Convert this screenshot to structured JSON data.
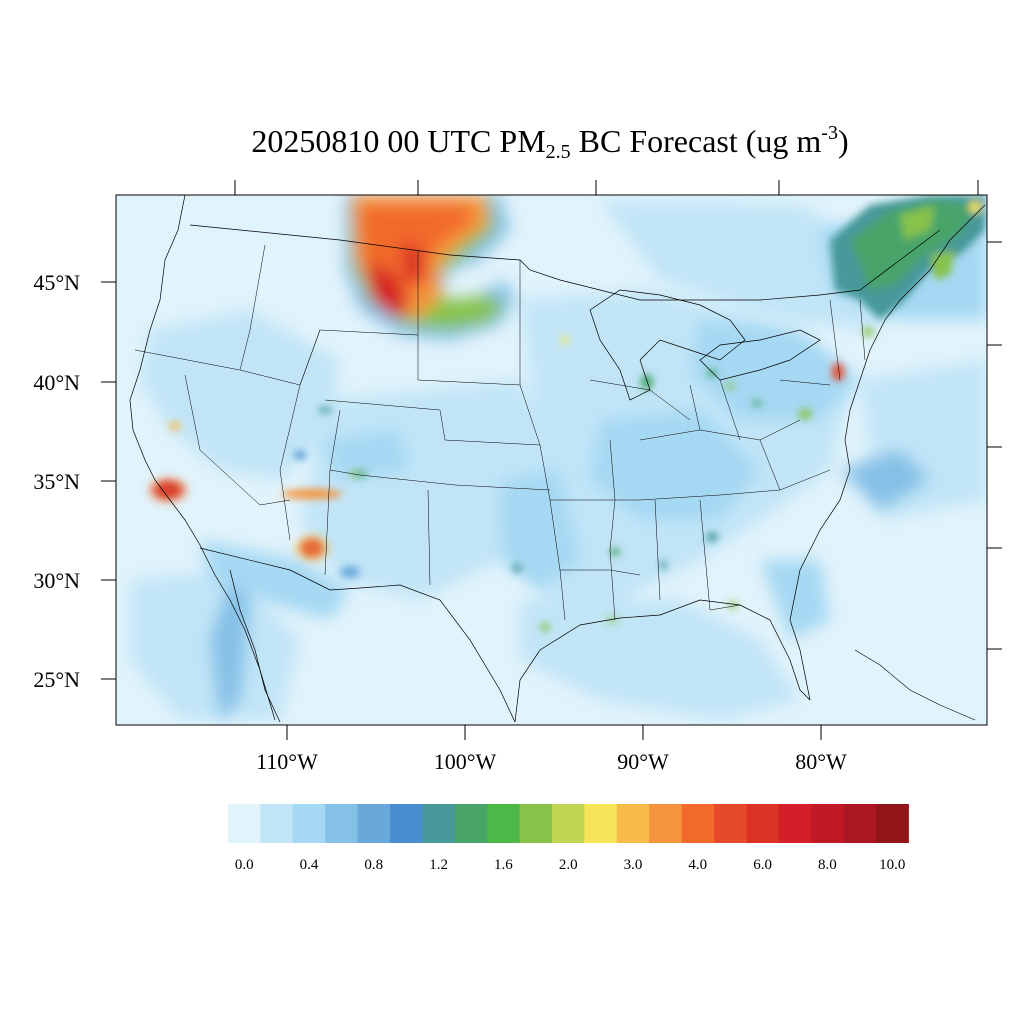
{
  "title": {
    "prefix": "20250810 00 UTC PM",
    "subscript": "2.5",
    "middle": " BC Forecast (ug m",
    "superscript": "-3",
    "suffix": ")"
  },
  "lat_labels": [
    "45°N",
    "40°N",
    "35°N",
    "30°N",
    "25°N"
  ],
  "lon_labels": [
    "110°W",
    "100°W",
    "90°W",
    "80°W"
  ],
  "colorbar": {
    "colors": [
      "#e1f3fb",
      "#c1e5f7",
      "#a5d8f3",
      "#85c0e6",
      "#68a8da",
      "#4a8dce",
      "#47999a",
      "#49a46a",
      "#4db748",
      "#87c24b",
      "#c2d552",
      "#f7e458",
      "#f7bb4a",
      "#f6953d",
      "#f26b2b",
      "#e74a29",
      "#dc3226",
      "#d41f28",
      "#c11a26",
      "#aa1722",
      "#921619"
    ],
    "tick_labels": [
      "0.0",
      "0.4",
      "0.8",
      "1.2",
      "1.6",
      "2.0",
      "3.0",
      "4.0",
      "6.0",
      "8.0",
      "10.0"
    ]
  },
  "colors": {
    "background": "#e1f3fb",
    "frame": "#000000"
  }
}
